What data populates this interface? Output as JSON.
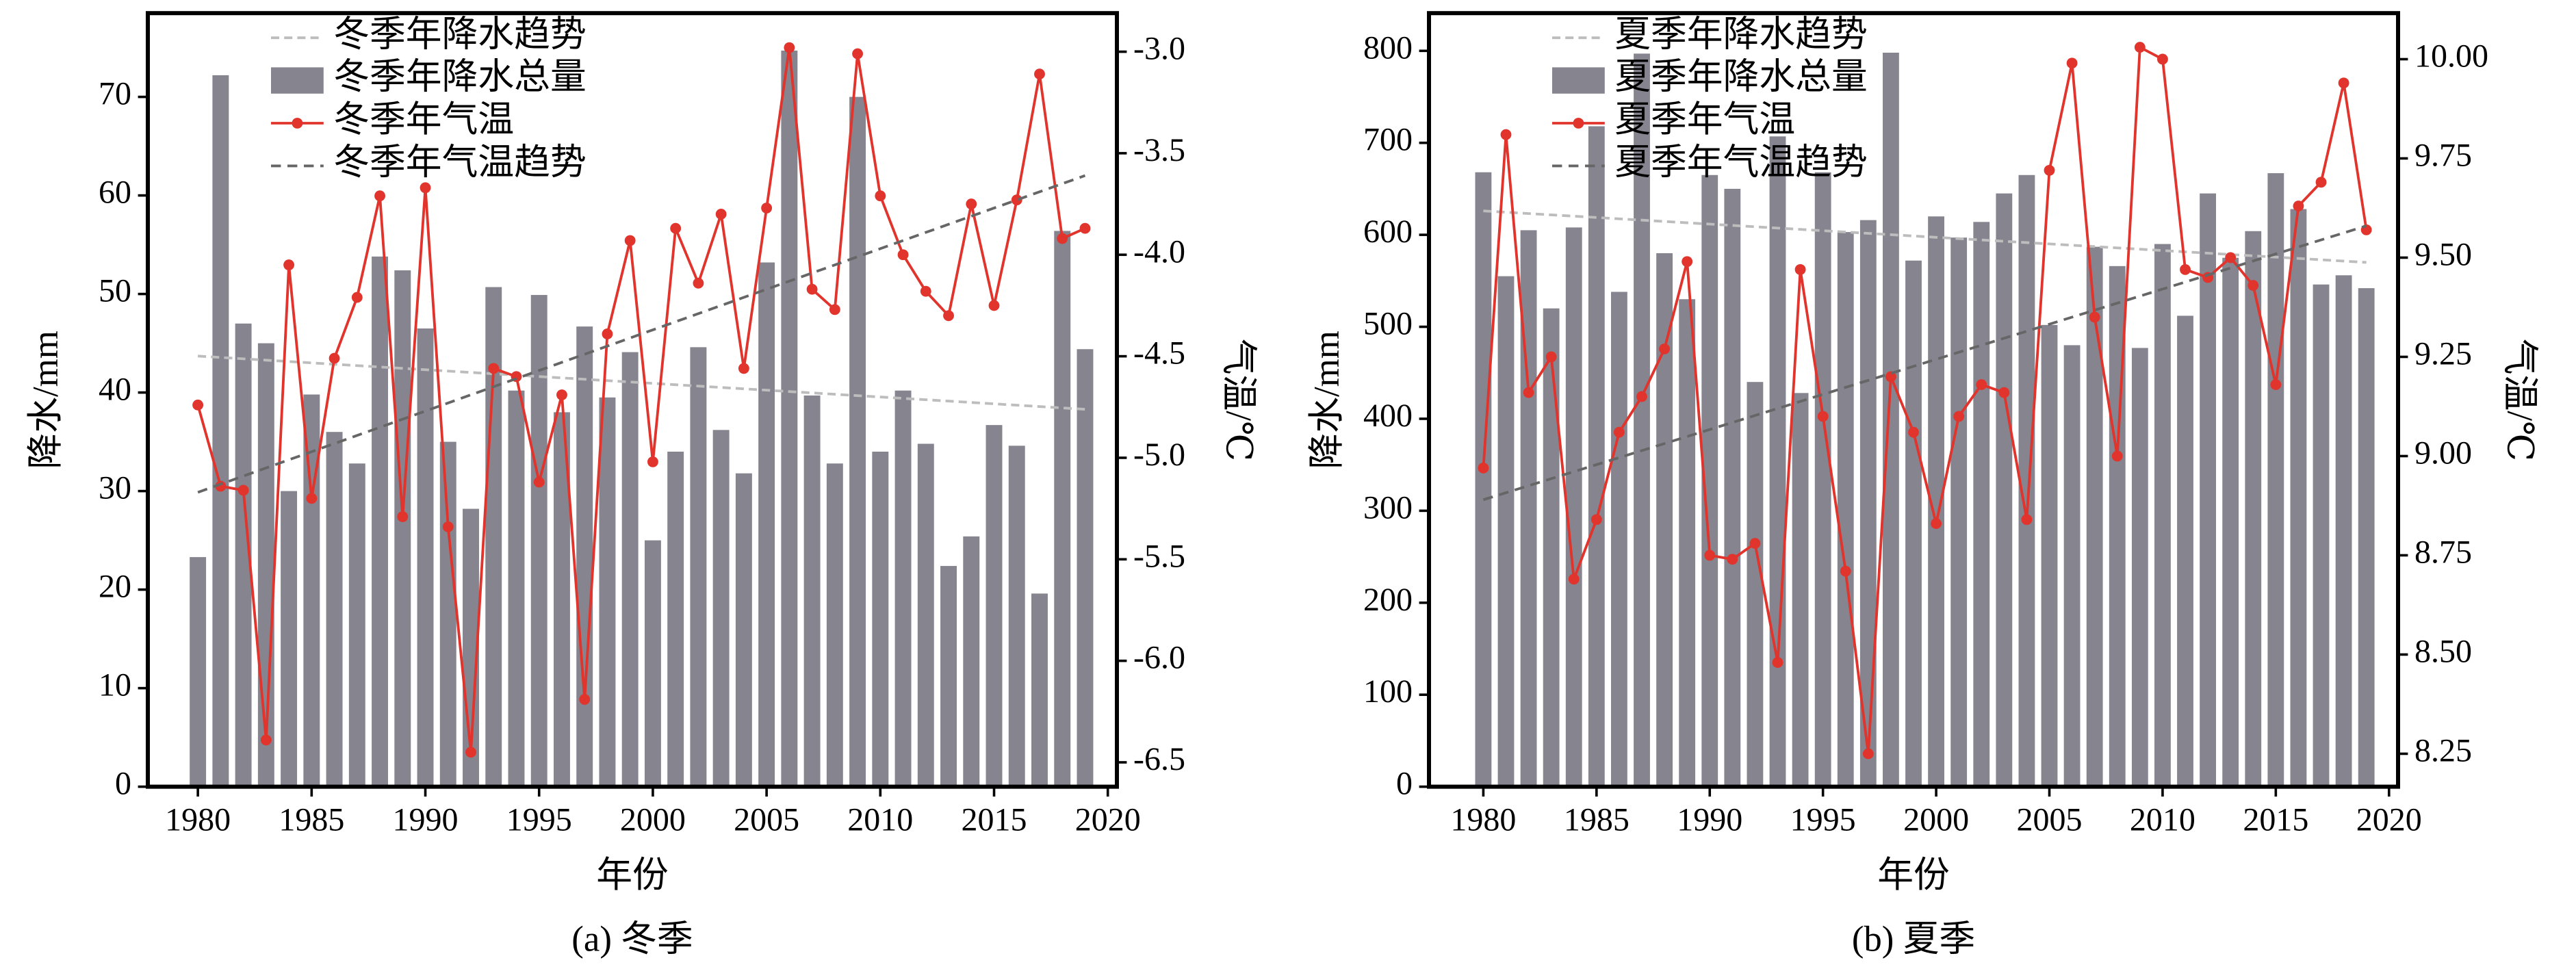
{
  "chart_data": [
    {
      "type": "bar",
      "caption": "(a) 冬季",
      "xlabel": "年份",
      "ylabel": "降水/mm",
      "y2label": "气温/℃",
      "xlim": [
        1977.8,
        2020.4
      ],
      "xticks": [
        1980,
        1985,
        1990,
        1995,
        2000,
        2005,
        2010,
        2015,
        2020
      ],
      "ylim": [
        0,
        78.5
      ],
      "yticks": [
        0,
        10,
        20,
        30,
        40,
        50,
        60,
        70
      ],
      "y2lim": [
        -6.62,
        -2.81
      ],
      "y2ticks": [
        {
          "value": -6.5,
          "label": "-6.5"
        },
        {
          "value": -6,
          "label": "-6.0"
        },
        -5.5,
        {
          "value": -5,
          "label": "-5.0"
        },
        -4.5,
        {
          "value": -4,
          "label": "-4.0"
        },
        -3.5,
        {
          "value": -3,
          "label": "-3.0"
        }
      ],
      "x": [
        1980,
        1981,
        1982,
        1983,
        1984,
        1985,
        1986,
        1987,
        1988,
        1989,
        1990,
        1991,
        1992,
        1993,
        1994,
        1995,
        1996,
        1997,
        1998,
        1999,
        2000,
        2001,
        2002,
        2003,
        2004,
        2005,
        2006,
        2007,
        2008,
        2009,
        2010,
        2011,
        2012,
        2013,
        2014,
        2015,
        2016,
        2017,
        2018,
        2019
      ],
      "series": [
        {
          "name": "冬季年降水趋势",
          "type": "trend",
          "color": "#bdbdbd",
          "x": [
            1980,
            2019
          ],
          "values": [
            43.7,
            38.3
          ]
        },
        {
          "name": "冬季年降水总量",
          "type": "bar",
          "color": "#86848f",
          "values": [
            23.3,
            72.2,
            47,
            45,
            30,
            39.8,
            36,
            32.8,
            53.8,
            52.4,
            46.5,
            35,
            28.2,
            50.7,
            40.2,
            49.9,
            38,
            46.7,
            39.5,
            44.1,
            25,
            34,
            44.6,
            36.2,
            31.8,
            53.2,
            74.7,
            39.7,
            32.8,
            70,
            34,
            40.2,
            34.8,
            22.4,
            25.4,
            36.7,
            34.6,
            19.6,
            56.4,
            44.4
          ]
        },
        {
          "name": "冬季年气温",
          "type": "line",
          "axis": "y2",
          "color": "#e0342c",
          "values": [
            -4.74,
            -5.14,
            -5.16,
            -6.39,
            -4.05,
            -5.2,
            -4.51,
            -4.21,
            -3.71,
            -5.29,
            -3.67,
            -5.34,
            -6.45,
            -4.56,
            -4.6,
            -5.12,
            -4.69,
            -6.19,
            -4.39,
            -3.93,
            -5.02,
            -3.87,
            -4.14,
            -3.8,
            -4.56,
            -3.77,
            -2.98,
            -4.17,
            -4.27,
            -3.01,
            -3.71,
            -4.0,
            -4.18,
            -4.3,
            -3.75,
            -4.25,
            -3.73,
            -3.11,
            -3.92,
            -3.87
          ]
        },
        {
          "name": "冬季年气温趋势",
          "type": "trend",
          "axis": "y2",
          "color": "#666666",
          "x": [
            1980,
            2019
          ],
          "values": [
            -5.17,
            -3.61
          ]
        }
      ]
    },
    {
      "type": "bar",
      "caption": "(b) 夏季",
      "xlabel": "年份",
      "ylabel": "降水/mm",
      "y2label": "气温/℃",
      "xlim": [
        1977.6,
        2020.4
      ],
      "xticks": [
        1980,
        1985,
        1990,
        1995,
        2000,
        2005,
        2010,
        2015,
        2020
      ],
      "ylim": [
        0,
        841
      ],
      "yticks": [
        0,
        100,
        200,
        300,
        400,
        500,
        600,
        700,
        800
      ],
      "y2lim": [
        8.167,
        10.116
      ],
      "y2ticks": [
        8.25,
        {
          "value": 8.5,
          "label": "8.50"
        },
        8.75,
        {
          "value": 9,
          "label": "9.00"
        },
        9.25,
        {
          "value": 9.5,
          "label": "9.50"
        },
        9.75,
        {
          "value": 10,
          "label": "10.00"
        }
      ],
      "x": [
        1980,
        1981,
        1982,
        1983,
        1984,
        1985,
        1986,
        1987,
        1988,
        1989,
        1990,
        1991,
        1992,
        1993,
        1994,
        1995,
        1996,
        1997,
        1998,
        1999,
        2000,
        2001,
        2002,
        2003,
        2004,
        2005,
        2006,
        2007,
        2008,
        2009,
        2010,
        2011,
        2012,
        2013,
        2014,
        2015,
        2016,
        2017,
        2018,
        2019
      ],
      "series": [
        {
          "name": "夏季年降水趋势",
          "type": "trend",
          "color": "#bdbdbd",
          "x": [
            1980,
            2019
          ],
          "values": [
            626,
            570
          ]
        },
        {
          "name": "夏季年降水总量",
          "type": "bar",
          "color": "#86848f",
          "values": [
            668,
            555,
            605,
            520,
            608,
            718,
            538,
            797,
            580,
            530,
            665,
            650,
            440,
            707,
            428,
            668,
            603,
            616,
            798,
            572,
            620,
            597,
            614,
            645,
            665,
            502,
            480,
            587,
            566,
            477,
            590,
            512,
            645,
            575,
            604,
            667,
            628,
            546,
            556,
            542
          ]
        },
        {
          "name": "夏季年气温",
          "type": "line",
          "axis": "y2",
          "color": "#e0342c",
          "values": [
            8.97,
            9.81,
            9.16,
            9.25,
            8.69,
            8.84,
            9.06,
            9.15,
            9.27,
            9.49,
            8.75,
            8.74,
            8.78,
            8.48,
            9.47,
            9.1,
            8.71,
            8.25,
            9.2,
            9.06,
            8.83,
            9.1,
            9.18,
            9.16,
            8.84,
            9.72,
            9.99,
            9.35,
            9.0,
            10.03,
            10.0,
            9.47,
            9.45,
            9.5,
            9.43,
            9.18,
            9.63,
            9.69,
            9.94,
            9.57
          ]
        },
        {
          "name": "夏季年气温趋势",
          "type": "trend",
          "axis": "y2",
          "color": "#666666",
          "x": [
            1980,
            2019
          ],
          "values": [
            8.89,
            9.58
          ]
        }
      ]
    }
  ]
}
